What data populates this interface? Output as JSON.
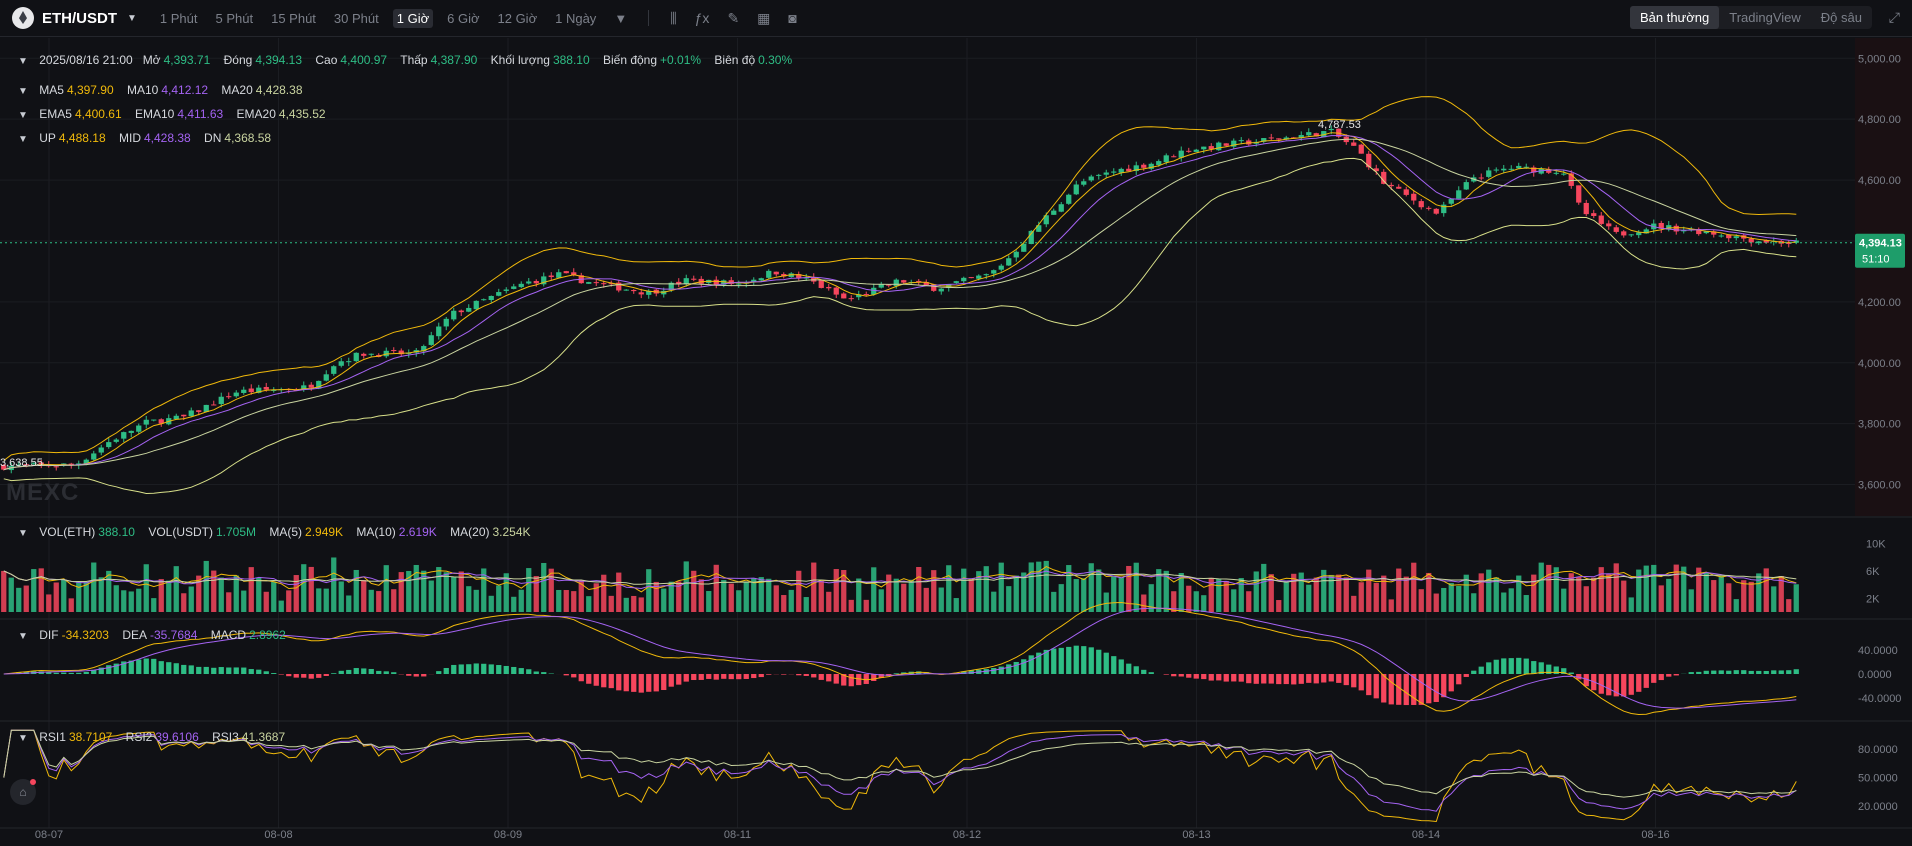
{
  "header": {
    "pair": "ETH/USDT",
    "timeframes": [
      "1 Phút",
      "5 Phút",
      "15 Phút",
      "30 Phút",
      "1 Giờ",
      "6 Giờ",
      "12 Giờ",
      "1 Ngày"
    ],
    "active_timeframe": "1 Giờ",
    "views": [
      "Bản thường",
      "TradingView",
      "Độ sâu"
    ],
    "active_view": "Bản thường"
  },
  "ohlc": {
    "date": "2025/08/16 21:00",
    "open_label": "Mở",
    "open": "4,393.71",
    "close_label": "Đóng",
    "close": "4,394.13",
    "high_label": "Cao",
    "high": "4,400.97",
    "low_label": "Thấp",
    "low": "4,387.90",
    "vol_label": "Khối lượng",
    "vol": "388.10",
    "change_label": "Biến động",
    "change": "+0.01%",
    "amp_label": "Biên độ",
    "amp": "0.30%"
  },
  "ma": {
    "ma5_label": "MA5",
    "ma5": "4,397.90",
    "ma10_label": "MA10",
    "ma10": "4,412.12",
    "ma20_label": "MA20",
    "ma20": "4,428.38"
  },
  "ema": {
    "ema5_label": "EMA5",
    "ema5": "4,400.61",
    "ema10_label": "EMA10",
    "ema10": "4,411.63",
    "ema20_label": "EMA20",
    "ema20": "4,435.52"
  },
  "boll": {
    "up_label": "UP",
    "up": "4,488.18",
    "mid_label": "MID",
    "mid": "4,428.38",
    "dn_label": "DN",
    "dn": "4,368.58"
  },
  "vol": {
    "eth_label": "VOL(ETH)",
    "eth": "388.10",
    "usdt_label": "VOL(USDT)",
    "usdt": "1.705M",
    "ma5_label": "MA(5)",
    "ma5": "2.949K",
    "ma10_label": "MA(10)",
    "ma10": "2.619K",
    "ma20_label": "MA(20)",
    "ma20": "3.254K"
  },
  "macd": {
    "dif_label": "DIF",
    "dif": "-34.3203",
    "dea_label": "DEA",
    "dea": "-35.7684",
    "macd_label": "MACD",
    "macd": "2.8962"
  },
  "rsi": {
    "rsi1_label": "RSI1",
    "rsi1": "38.7107",
    "rsi2_label": "RSI2",
    "rsi2": "39.6106",
    "rsi3_label": "RSI3",
    "rsi3": "41.3687"
  },
  "watermark": "MEXC",
  "colors": {
    "up": "#2ebd85",
    "down": "#f6465d",
    "bg": "#101115",
    "ma5": "#f0b90b",
    "ma10": "#a463f2",
    "ma20": "#c9d4a0",
    "boll_up": "#f0b90b",
    "boll_dn": "#d8e08a"
  },
  "chart_data": {
    "type": "candlestick",
    "price_axis": {
      "ticks": [
        5000,
        4800,
        4600,
        4400,
        4200,
        4000,
        3800,
        3600
      ],
      "tick_labels": [
        "5,000.00",
        "4,800.00",
        "4,600.00",
        "4,400.00",
        "4,200.00",
        "4,000.00",
        "3,800.00",
        "3,600.00"
      ],
      "range": [
        3500,
        5060
      ]
    },
    "x_axis": {
      "labels": [
        "08-07",
        "08-08",
        "08-09",
        "08-11",
        "08-12",
        "08-13",
        "08-14",
        "08-16"
      ]
    },
    "last_price": "4,394.13",
    "countdown": "51:10",
    "high_annotation": "4,787.53",
    "low_annotation": "3,638.55",
    "close_path": [
      {
        "t": 0,
        "p": 3660
      },
      {
        "t": 0.04,
        "p": 3665
      },
      {
        "t": 0.06,
        "p": 3745
      },
      {
        "t": 0.08,
        "p": 3805
      },
      {
        "t": 0.1,
        "p": 3820
      },
      {
        "t": 0.13,
        "p": 3905
      },
      {
        "t": 0.16,
        "p": 3915
      },
      {
        "t": 0.17,
        "p": 3920
      },
      {
        "t": 0.185,
        "p": 4000
      },
      {
        "t": 0.2,
        "p": 4030
      },
      {
        "t": 0.23,
        "p": 4030
      },
      {
        "t": 0.25,
        "p": 4160
      },
      {
        "t": 0.27,
        "p": 4210
      },
      {
        "t": 0.29,
        "p": 4260
      },
      {
        "t": 0.31,
        "p": 4290
      },
      {
        "t": 0.33,
        "p": 4260
      },
      {
        "t": 0.36,
        "p": 4230
      },
      {
        "t": 0.38,
        "p": 4270
      },
      {
        "t": 0.41,
        "p": 4260
      },
      {
        "t": 0.43,
        "p": 4300
      },
      {
        "t": 0.45,
        "p": 4270
      },
      {
        "t": 0.47,
        "p": 4205
      },
      {
        "t": 0.5,
        "p": 4270
      },
      {
        "t": 0.52,
        "p": 4245
      },
      {
        "t": 0.55,
        "p": 4290
      },
      {
        "t": 0.56,
        "p": 4340
      },
      {
        "t": 0.58,
        "p": 4470
      },
      {
        "t": 0.6,
        "p": 4590
      },
      {
        "t": 0.62,
        "p": 4630
      },
      {
        "t": 0.64,
        "p": 4655
      },
      {
        "t": 0.66,
        "p": 4700
      },
      {
        "t": 0.68,
        "p": 4715
      },
      {
        "t": 0.71,
        "p": 4735
      },
      {
        "t": 0.74,
        "p": 4760
      },
      {
        "t": 0.755,
        "p": 4700
      },
      {
        "t": 0.77,
        "p": 4590
      },
      {
        "t": 0.8,
        "p": 4490
      },
      {
        "t": 0.82,
        "p": 4610
      },
      {
        "t": 0.84,
        "p": 4640
      },
      {
        "t": 0.87,
        "p": 4630
      },
      {
        "t": 0.88,
        "p": 4500
      },
      {
        "t": 0.9,
        "p": 4420
      },
      {
        "t": 0.92,
        "p": 4450
      },
      {
        "t": 0.95,
        "p": 4430
      },
      {
        "t": 0.98,
        "p": 4400
      },
      {
        "t": 1,
        "p": 4394
      }
    ],
    "volume_axis": {
      "tick_labels": [
        "10K",
        "6K",
        "2K"
      ],
      "ticks": [
        10000,
        6000,
        2000
      ]
    },
    "macd_axis": {
      "tick_labels": [
        "40.0000",
        "0.0000",
        "-40.0000"
      ],
      "ticks": [
        40,
        0,
        -40
      ]
    },
    "rsi_axis": {
      "tick_labels": [
        "80.0000",
        "50.0000",
        "20.0000"
      ],
      "ticks": [
        80,
        50,
        20
      ]
    }
  }
}
